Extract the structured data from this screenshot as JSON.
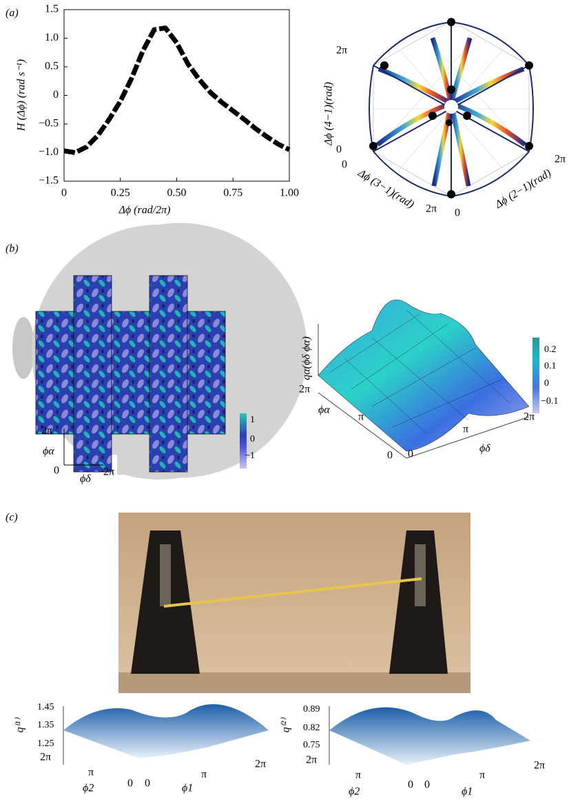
{
  "panel_labels": [
    "(a)",
    "(b)",
    "(c)"
  ],
  "chart_data": {
    "type": "line",
    "y_label": "H (Δϕ) (rad s⁻¹)",
    "x_label": "Δϕ (rad/2π)",
    "x": [
      0,
      0.05,
      0.1,
      0.15,
      0.2,
      0.25,
      0.3,
      0.35,
      0.4,
      0.45,
      0.5,
      0.55,
      0.6,
      0.65,
      0.7,
      0.75,
      0.8,
      0.85,
      0.9,
      0.95,
      1.0
    ],
    "values": [
      -0.97,
      -1.0,
      -0.9,
      -0.7,
      -0.42,
      -0.1,
      0.3,
      0.78,
      1.15,
      1.18,
      0.92,
      0.55,
      0.28,
      0.05,
      -0.12,
      -0.27,
      -0.42,
      -0.58,
      -0.72,
      -0.85,
      -0.95
    ],
    "color": "#000000",
    "line_style": "dashed",
    "xlim": [
      0,
      1
    ],
    "ylim": [
      -1.5,
      1.5
    ],
    "xticks": [
      0,
      0.25,
      {
        "value": 0.5,
        "label": "0.50"
      },
      0.75,
      {
        "value": 1,
        "label": "1.00"
      }
    ],
    "yticks": [
      {
        "value": -1.5,
        "label": "−1.5"
      },
      {
        "value": -1,
        "label": "−1.0"
      },
      {
        "value": -0.5,
        "label": "−0.5"
      },
      0,
      0.5,
      {
        "value": 1,
        "label": "1.0"
      },
      1.5
    ]
  },
  "phase_plot": {
    "y_label": "Δϕ (4−1)(rad)",
    "x_label_left": "Δϕ (3−1)(rad)",
    "x_label_right": "Δϕ (2−1)(rad)",
    "ticks": [
      "2π",
      "0",
      "0",
      "2π",
      "2π",
      "0"
    ]
  },
  "head_map": {
    "colorbar_ticks": [
      "1",
      "0",
      "−1"
    ],
    "y_label": "ϕα",
    "x_label": "ϕδ",
    "axis_ticks": [
      "2π",
      "0",
      "2π"
    ]
  },
  "surface_b": {
    "z_label": "qα(ϕδ ϕα)",
    "colorbar_ticks": [
      "0.2",
      "0.1",
      "0",
      "−0.1"
    ],
    "y_label": "ϕα",
    "x_label": "ϕδ",
    "y_ticks": [
      "2π",
      "π",
      "0"
    ],
    "x_ticks": [
      "0",
      "π",
      "2π"
    ]
  },
  "surface_c1": {
    "z_label": "q⁽¹⁾",
    "z_ticks": [
      "1.45",
      "1.35",
      "1.25"
    ],
    "y_label": "ϕ2",
    "x_label": "ϕ1",
    "y_ticks": [
      "2π",
      "π",
      "0"
    ],
    "x_ticks": [
      "0",
      "π",
      "2π"
    ]
  },
  "surface_c2": {
    "z_label": "q⁽²⁾",
    "z_ticks": [
      "0.89",
      "0.82",
      "0.75"
    ],
    "y_label": "ϕ2",
    "x_label": "ϕ1",
    "y_ticks": [
      "2π",
      "π",
      "0"
    ],
    "x_ticks": [
      "0",
      "π",
      "2π"
    ]
  }
}
